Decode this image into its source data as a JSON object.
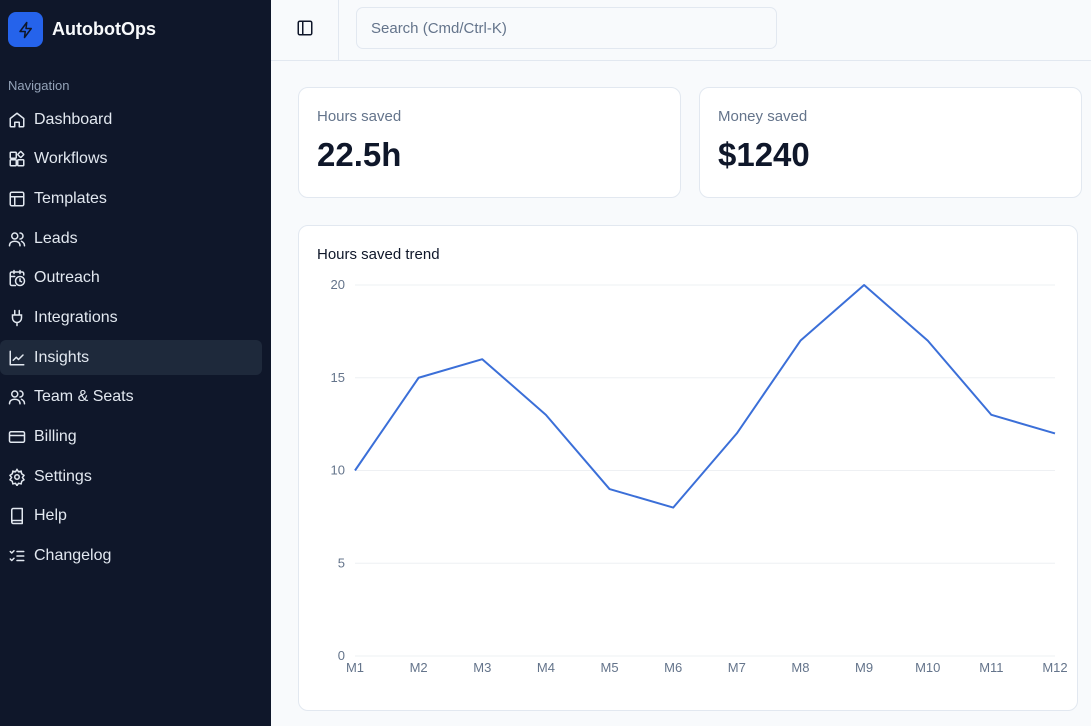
{
  "brand": {
    "name": "AutobotOps",
    "icon": "lightning-icon",
    "accent": "#2563eb"
  },
  "nav": {
    "heading": "Navigation",
    "items": [
      {
        "label": "Dashboard",
        "icon": "home-icon"
      },
      {
        "label": "Workflows",
        "icon": "workflow-icon"
      },
      {
        "label": "Templates",
        "icon": "template-icon"
      },
      {
        "label": "Leads",
        "icon": "users-icon"
      },
      {
        "label": "Outreach",
        "icon": "calendar-clock-icon"
      },
      {
        "label": "Integrations",
        "icon": "plug-icon"
      },
      {
        "label": "Insights",
        "icon": "line-chart-icon",
        "active": true
      },
      {
        "label": "Team & Seats",
        "icon": "team-icon"
      },
      {
        "label": "Billing",
        "icon": "credit-card-icon"
      },
      {
        "label": "Settings",
        "icon": "gear-icon"
      },
      {
        "label": "Help",
        "icon": "book-icon"
      },
      {
        "label": "Changelog",
        "icon": "list-checks-icon"
      }
    ]
  },
  "topbar": {
    "search_placeholder": "Search (Cmd/Ctrl-K)"
  },
  "stats": {
    "hours": {
      "label": "Hours saved",
      "value": "22.5h"
    },
    "money": {
      "label": "Money saved",
      "value": "$1240"
    }
  },
  "chart": {
    "title": "Hours saved trend"
  },
  "chart_data": {
    "type": "line",
    "title": "Hours saved trend",
    "categories": [
      "M1",
      "M2",
      "M3",
      "M4",
      "M5",
      "M6",
      "M7",
      "M8",
      "M9",
      "M10",
      "M11",
      "M12"
    ],
    "series": [
      {
        "values": [
          10,
          15,
          16,
          13,
          9,
          8,
          12,
          17,
          20,
          17,
          13,
          12
        ],
        "color": "#3b6fd8"
      }
    ],
    "yticks": [
      0,
      5,
      10,
      15,
      20
    ],
    "ylim": [
      0,
      20
    ],
    "grid": true
  }
}
